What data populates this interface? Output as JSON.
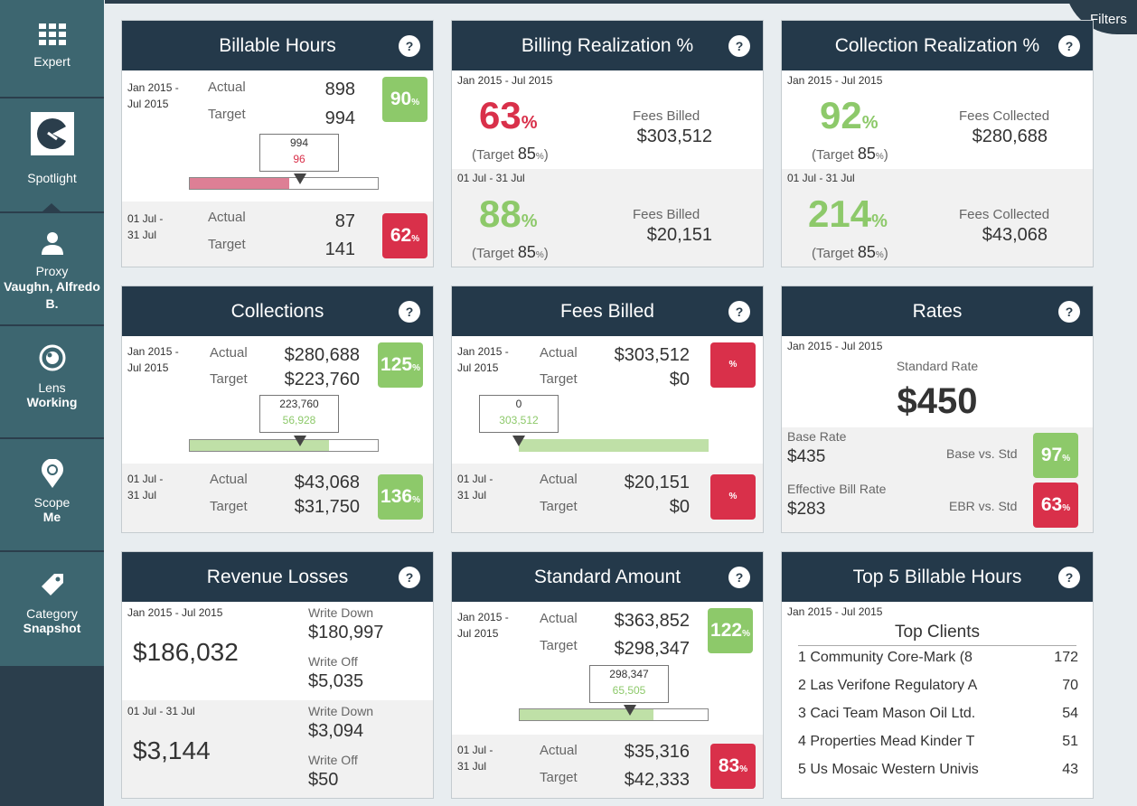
{
  "sidebar": {
    "expert": "Expert",
    "spotlight": "Spotlight",
    "proxy_label": "Proxy",
    "proxy_value": "Vaughn, Alfredo B.",
    "lens_label": "Lens",
    "lens_value": "Working",
    "scope_label": "Scope",
    "scope_value": "Me",
    "category_label": "Category",
    "category_value": "Snapshot"
  },
  "filters": "Filters",
  "labels": {
    "actual": "Actual",
    "target": "Target",
    "help": "?"
  },
  "billable_hours": {
    "title": "Billable Hours",
    "period1_a": "Jan 2015 -",
    "period1_b": "Jul 2015",
    "actual": "898",
    "target": "994",
    "pct": "90",
    "callout_top": "994",
    "callout_bottom": "96",
    "period2_a": "01 Jul -",
    "period2_b": "31 Jul",
    "actual2": "87",
    "target2": "141",
    "pct2": "62"
  },
  "billing_realization": {
    "title": "Billing Realization %",
    "period1": "Jan 2015 - Jul 2015",
    "pct": "63",
    "target_label": "(Target",
    "target": "85",
    "target_end": ")",
    "fees_label": "Fees Billed",
    "fees": "$303,512",
    "period2": "01 Jul - 31 Jul",
    "pct2": "88",
    "target2": "85",
    "fees2": "$20,151"
  },
  "collection_realization": {
    "title": "Collection Realization %",
    "period1": "Jan 2015 - Jul 2015",
    "pct": "92",
    "target": "85",
    "fees_label": "Fees Collected",
    "fees": "$280,688",
    "period2": "01 Jul - 31 Jul",
    "pct2": "214",
    "target2": "85",
    "fees2": "$43,068"
  },
  "collections": {
    "title": "Collections",
    "period1_a": "Jan 2015 -",
    "period1_b": "Jul 2015",
    "actual": "$280,688",
    "target": "$223,760",
    "pct": "125",
    "callout_top": "223,760",
    "callout_bottom": "56,928",
    "period2_a": "01 Jul -",
    "period2_b": "31 Jul",
    "actual2": "$43,068",
    "target2": "$31,750",
    "pct2": "136"
  },
  "fees_billed": {
    "title": "Fees Billed",
    "period1_a": "Jan 2015 -",
    "period1_b": "Jul 2015",
    "actual": "$303,512",
    "target": "$0",
    "pct_sym": "%",
    "callout_top": "0",
    "callout_bottom": "303,512",
    "period2_a": "01 Jul -",
    "period2_b": "31 Jul",
    "actual2": "$20,151",
    "target2": "$0"
  },
  "rates": {
    "title": "Rates",
    "period": "Jan 2015 - Jul 2015",
    "std_label": "Standard Rate",
    "std": "$450",
    "base_label": "Base Rate",
    "base": "$435",
    "base_vs_label": "Base vs. Std",
    "base_pct": "97",
    "ebr_label": "Effective Bill Rate",
    "ebr": "$283",
    "ebr_vs_label": "EBR vs. Std",
    "ebr_pct": "63"
  },
  "revenue_losses": {
    "title": "Revenue Losses",
    "period1": "Jan 2015 - Jul 2015",
    "total": "$186,032",
    "wd_label": "Write Down",
    "wd": "$180,997",
    "wo_label": "Write Off",
    "wo": "$5,035",
    "period2": "01 Jul - 31 Jul",
    "total2": "$3,144",
    "wd2": "$3,094",
    "wo2": "$50"
  },
  "standard_amount": {
    "title": "Standard Amount",
    "period1_a": "Jan 2015 -",
    "period1_b": "Jul 2015",
    "actual": "$363,852",
    "target": "$298,347",
    "pct": "122",
    "callout_top": "298,347",
    "callout_bottom": "65,505",
    "period2_a": "01 Jul -",
    "period2_b": "31 Jul",
    "actual2": "$35,316",
    "target2": "$42,333",
    "pct2": "83"
  },
  "top5": {
    "title": "Top 5 Billable Hours",
    "period": "Jan 2015 - Jul 2015",
    "subtitle": "Top Clients",
    "rows": [
      {
        "name": "1 Community Core-Mark (8",
        "hours": "172"
      },
      {
        "name": "2 Las Verifone Regulatory A",
        "hours": "70"
      },
      {
        "name": "3 Caci Team Mason Oil Ltd.",
        "hours": "54"
      },
      {
        "name": "4 Properties Mead Kinder T",
        "hours": "51"
      },
      {
        "name": "5 Us Mosaic Western Univis",
        "hours": "43"
      }
    ]
  },
  "progress": {
    "billable_hours": 0.53,
    "collections": 0.74,
    "fees_billed": 1.0,
    "standard_amount": 0.71
  },
  "colors": {
    "green": "#8dc96a",
    "red": "#d9304a",
    "pink": "#dd7f95",
    "header": "#24394a"
  }
}
